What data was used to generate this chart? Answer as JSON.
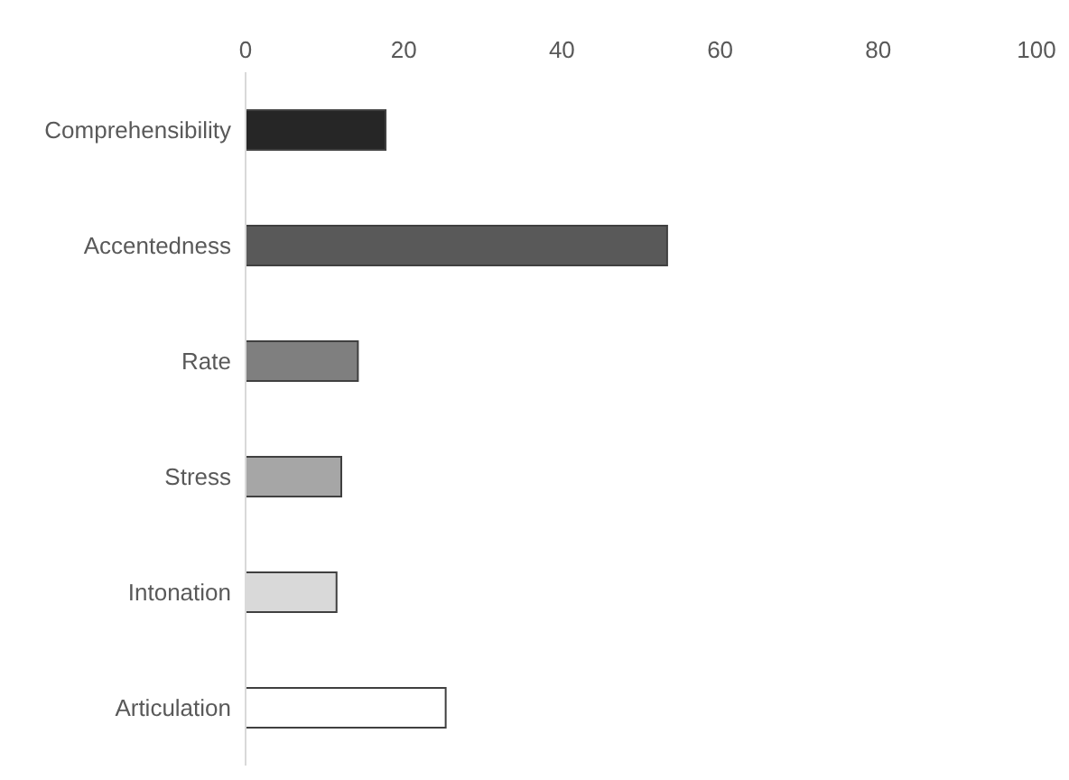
{
  "chart_data": {
    "type": "bar",
    "orientation": "horizontal",
    "categories": [
      "Comprehensibility",
      "Accentedness",
      "Rate",
      "Stress",
      "Intonation",
      "Articulation"
    ],
    "values": [
      17.7,
      53.3,
      14.2,
      12.1,
      11.5,
      25.3
    ],
    "colors": [
      "#262626",
      "#595959",
      "#7f7f7f",
      "#a6a6a6",
      "#d9d9d9",
      "#ffffff"
    ],
    "xlim": [
      0,
      100
    ],
    "xticks": [
      0,
      20,
      40,
      60,
      80,
      100
    ],
    "grid": false
  }
}
